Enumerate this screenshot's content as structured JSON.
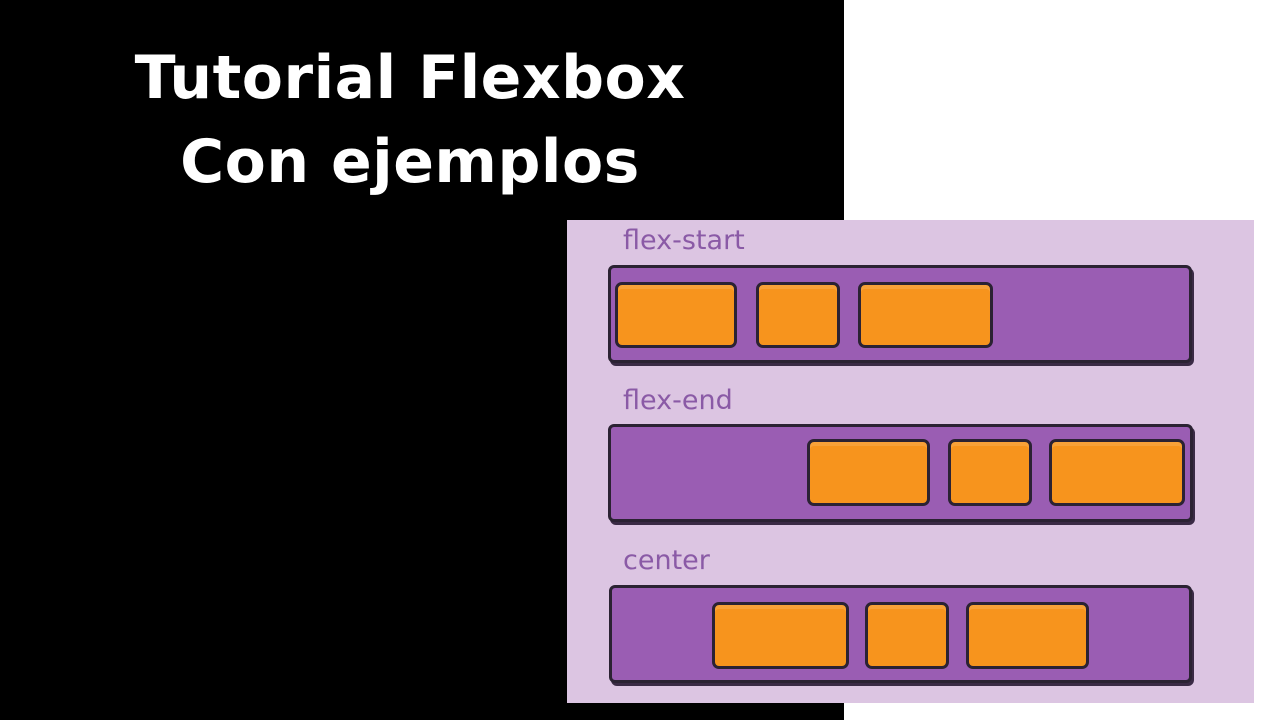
{
  "title": {
    "line1": "Tutorial Flexbox",
    "line2": "Con ejemplos"
  },
  "diagram": {
    "rows": [
      {
        "label": "flex-start"
      },
      {
        "label": "flex-end"
      },
      {
        "label": "center"
      }
    ]
  },
  "colors": {
    "background_left": "#000000",
    "background_right": "#ffffff",
    "title_text": "#ffffff",
    "diagram_background": "#dcc5e2",
    "track": "#9a5db3",
    "item": "#f7941d",
    "label": "#8a5aa6",
    "outline": "#2b2233"
  }
}
